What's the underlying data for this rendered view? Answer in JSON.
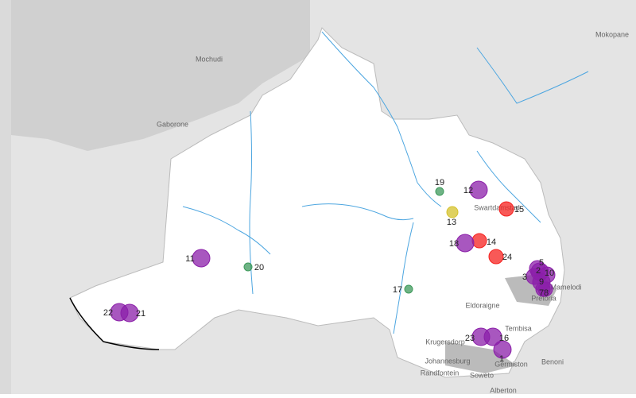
{
  "places": [
    "Mokopane",
    "Mochudi",
    "Gaborone",
    "Swartdamstad",
    "Pretoria",
    "Mamelodi",
    "Eldoraigne",
    "Tembisa",
    "Krugersdorp",
    "Johannesburg",
    "Randfontein",
    "Soweto",
    "Germiston",
    "Benoni",
    "Alberton"
  ],
  "sites": [
    {
      "label": "1",
      "color": "#8b1fa9"
    },
    {
      "label": "2",
      "color": "#8b1fa9"
    },
    {
      "label": "3",
      "color": "#8b1fa9"
    },
    {
      "label": "5",
      "color": "#8b1fa9"
    },
    {
      "label": "7",
      "color": "#8b1fa9"
    },
    {
      "label": "8",
      "color": "#8b1fa9"
    },
    {
      "label": "9",
      "color": "#8b1fa9"
    },
    {
      "label": "10",
      "color": "#8b1fa9"
    },
    {
      "label": "11",
      "color": "#8b1fa9"
    },
    {
      "label": "12",
      "color": "#8b1fa9"
    },
    {
      "label": "13",
      "color": "#d4c12b"
    },
    {
      "label": "14",
      "color": "#f5211f"
    },
    {
      "label": "15",
      "color": "#f5211f"
    },
    {
      "label": "16",
      "color": "#8b1fa9"
    },
    {
      "label": "17",
      "color": "#3f9a5c"
    },
    {
      "label": "18",
      "color": "#8b1fa9"
    },
    {
      "label": "19",
      "color": "#3f9a5c"
    },
    {
      "label": "20",
      "color": "#3f9a5c"
    },
    {
      "label": "21",
      "color": "#8b1fa9"
    },
    {
      "label": "22",
      "color": "#8b1fa9"
    },
    {
      "label": "23",
      "color": "#8b1fa9"
    },
    {
      "label": "24",
      "color": "#f5211f"
    }
  ]
}
